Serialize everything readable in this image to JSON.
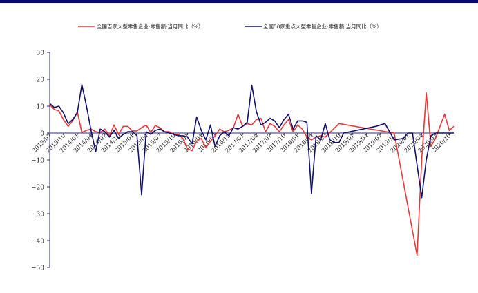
{
  "colors": {
    "top_bar": "#0a0a6e",
    "axis": "#2a2a7a",
    "series_1": "#e8373a",
    "series_2": "#10106b"
  },
  "chart_data": {
    "type": "line",
    "title": "",
    "xlabel": "",
    "ylabel": "",
    "ylim": [
      -50,
      30
    ],
    "yticks": [
      30,
      20,
      10,
      0,
      -10,
      -20,
      -30,
      -40,
      -50
    ],
    "grid": false,
    "legend_position": "top",
    "x_start_month": "2013/07",
    "tick_labels": [
      "2013/07",
      "2013/10",
      "2014/01",
      "2014/04",
      "2014/07",
      "2014/10",
      "2015/01",
      "2015/04",
      "2015/07",
      "2015/10",
      "2016/01",
      "2016/04",
      "2016/07",
      "2016/10",
      "2017/01",
      "2017/04",
      "2017/07",
      "2017/10",
      "2018/01",
      "2018/04",
      "2018/07",
      "2018/10",
      "2019/01",
      "2019/04",
      "2019/07",
      "2019/10",
      "2020/01",
      "2020/04",
      "2020/07",
      "2020/10"
    ],
    "series": [
      {
        "name": "全国百家大型零售企业:零售额:当月同比（%）",
        "color": "#e8373a",
        "values": [
          10.5,
          8.8,
          8.2,
          5.0,
          2.5,
          4.5,
          8.0,
          0.2,
          1.0,
          1.5,
          0.5,
          0.2,
          1.5,
          -1.0,
          3.0,
          -0.5,
          2.5,
          2.5,
          0.8,
          0.8,
          2.0,
          3.0,
          0.2,
          2.8,
          2.0,
          0.5,
          0.5,
          -0.5,
          -0.5,
          -2.0,
          -6.0,
          -6.5,
          -3.0,
          -2.0,
          -5.5,
          -3.0,
          -1.0,
          1.5,
          0.5,
          1.0,
          2.0,
          7.0,
          2.5,
          3.5,
          3.0,
          5.0,
          5.5,
          0.5,
          3.5,
          2.5,
          0.5,
          3.0,
          5.0,
          0.5,
          3.0,
          1.5,
          -1.5,
          -2.5,
          -1.5,
          -1.0,
          -1.5,
          null,
          null,
          3.5,
          null,
          null,
          null,
          null,
          null,
          null,
          null,
          null,
          null,
          null,
          null,
          0.0,
          null,
          null,
          null,
          null,
          -45.5,
          -10.0,
          15.0,
          -5.0,
          -2.0,
          null,
          7.0,
          1.0,
          2.5
        ]
      },
      {
        "name": "全国50家重点大型零售企业:零售额:当月同比（%）",
        "color": "#10106b",
        "values": [
          11.0,
          9.5,
          10.0,
          7.5,
          3.5,
          5.0,
          7.5,
          18.0,
          10.0,
          1.0,
          -7.0,
          1.5,
          0.5,
          -1.5,
          1.0,
          -2.0,
          -0.5,
          0.5,
          0.5,
          -1.0,
          -23.0,
          0.5,
          -0.5,
          1.0,
          1.5,
          0.5,
          0.0,
          -0.5,
          -1.0,
          -1.0,
          -1.5,
          -4.0,
          6.0,
          1.0,
          -2.5,
          3.0,
          -5.0,
          -1.0,
          0.5,
          -1.0,
          2.0,
          1.5,
          2.5,
          4.0,
          17.8,
          8.0,
          3.0,
          4.0,
          5.5,
          4.5,
          2.0,
          5.0,
          7.0,
          1.5,
          4.5,
          4.5,
          4.0,
          -22.5,
          -1.0,
          -2.5,
          3.5,
          -2.5,
          -3.5,
          -3.5,
          0.0,
          null,
          null,
          null,
          null,
          null,
          null,
          2.5,
          null,
          3.5,
          null,
          -2.5,
          null,
          -2.0,
          0.0,
          0.0,
          null,
          -24.0,
          -10.0,
          -1.0,
          0.0,
          0.0,
          0.0,
          0.0,
          0.0
        ]
      }
    ]
  }
}
